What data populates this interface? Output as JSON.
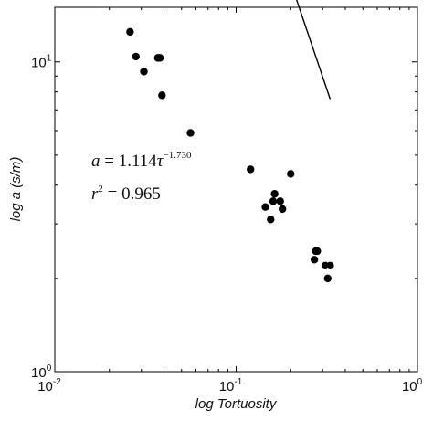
{
  "chart_data": {
    "type": "scatter",
    "xscale": "log",
    "yscale": "log",
    "xlim": [
      0.01,
      1
    ],
    "ylim": [
      1,
      15
    ],
    "xlabel": "log Tortuosity",
    "ylabel": "log a (s/m)",
    "grid": false,
    "x_ticks": [
      {
        "base": "10",
        "exp": "-2"
      },
      {
        "base": "10",
        "exp": "-1"
      },
      {
        "base": "10",
        "exp": "0"
      }
    ],
    "y_ticks": [
      {
        "base": "10",
        "exp": "0"
      },
      {
        "base": "10",
        "exp": "1"
      }
    ],
    "points": [
      {
        "x": 0.026,
        "y": 12.5
      },
      {
        "x": 0.028,
        "y": 10.4
      },
      {
        "x": 0.031,
        "y": 9.3
      },
      {
        "x": 0.037,
        "y": 10.3
      },
      {
        "x": 0.038,
        "y": 10.3
      },
      {
        "x": 0.039,
        "y": 7.8
      },
      {
        "x": 0.056,
        "y": 5.9
      },
      {
        "x": 0.12,
        "y": 4.5
      },
      {
        "x": 0.145,
        "y": 3.4
      },
      {
        "x": 0.155,
        "y": 3.1
      },
      {
        "x": 0.16,
        "y": 3.55
      },
      {
        "x": 0.163,
        "y": 3.75
      },
      {
        "x": 0.175,
        "y": 3.55
      },
      {
        "x": 0.18,
        "y": 3.35
      },
      {
        "x": 0.2,
        "y": 4.35
      },
      {
        "x": 0.27,
        "y": 2.3
      },
      {
        "x": 0.28,
        "y": 2.45
      },
      {
        "x": 0.275,
        "y": 2.45
      },
      {
        "x": 0.31,
        "y": 2.2
      },
      {
        "x": 0.33,
        "y": 2.2
      },
      {
        "x": 0.32,
        "y": 2.0
      }
    ],
    "fit": {
      "coefficient": 1.114,
      "exponent": -1.73,
      "x_range": [
        0.021,
        0.33
      ]
    },
    "annotations": {
      "equation": {
        "lhs": "a",
        "eq": " = 1.114",
        "var": "τ",
        "sup": "−1.730"
      },
      "r2": {
        "lhs": "r",
        "sup": "2",
        "eq": " = 0.965"
      }
    }
  }
}
